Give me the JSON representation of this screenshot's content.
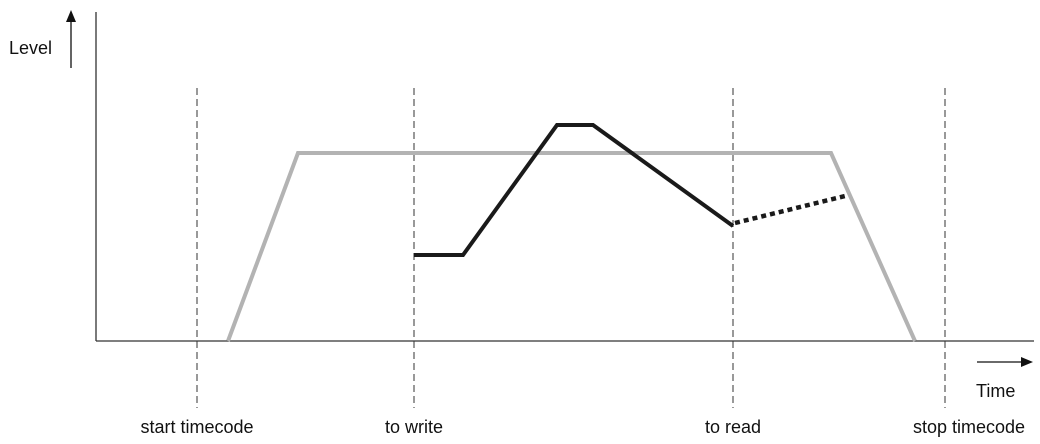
{
  "axes": {
    "y_label": "Level",
    "x_label": "Time"
  },
  "markers": [
    {
      "id": "start",
      "label": "start timecode"
    },
    {
      "id": "write",
      "label": "to write"
    },
    {
      "id": "read",
      "label": "to read"
    },
    {
      "id": "stop",
      "label": "stop timecode"
    }
  ],
  "colors": {
    "axis": "#333333",
    "guide": "#333333",
    "envelope": "#b3b3b3",
    "automation": "#1a1a1a"
  }
}
